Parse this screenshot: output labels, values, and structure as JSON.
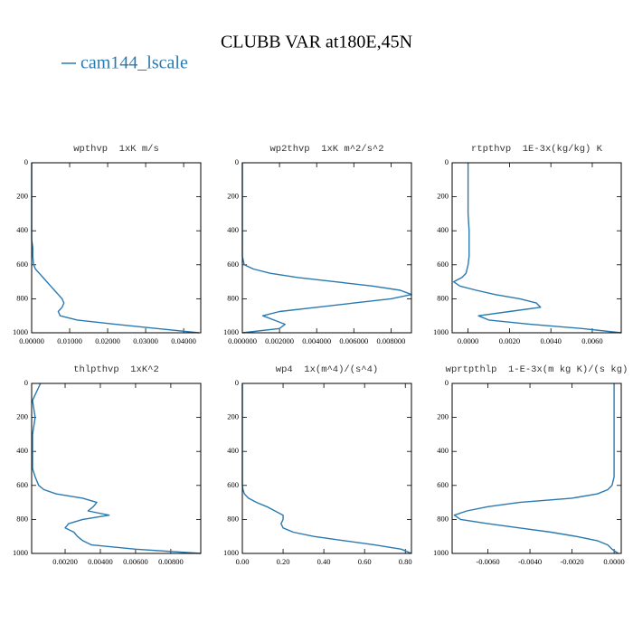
{
  "title": "CLUBB VAR at180E,45N",
  "chart_data": [
    {
      "type": "line",
      "title": "wpthvp  1xK m/s",
      "y_inverted": true,
      "y": [
        0,
        100,
        200,
        300,
        400,
        450,
        500,
        550,
        600,
        625,
        650,
        675,
        700,
        725,
        750,
        775,
        800,
        825,
        850,
        875,
        900,
        925,
        950,
        975,
        1000
      ],
      "ylim": [
        0,
        1000
      ],
      "yticks": [
        0,
        200,
        400,
        600,
        800,
        1000
      ],
      "xlim": [
        0,
        0.0445
      ],
      "xticks": [
        {
          "value": 0,
          "label": "0.00000"
        },
        {
          "value": 0.01,
          "label": "0.01000"
        },
        {
          "value": 0.02,
          "label": "0.02000"
        },
        {
          "value": 0.03,
          "label": "0.03000"
        },
        {
          "value": 0.04,
          "label": "0.04000"
        }
      ],
      "series": [
        {
          "name": "cam144_lscale",
          "color": "#2a7ab0",
          "values": [
            0,
            0,
            0,
            0,
            0,
            0,
            0.0003,
            0.0003,
            0.0005,
            0.001,
            0.002,
            0.003,
            0.004,
            0.005,
            0.006,
            0.007,
            0.008,
            0.0085,
            0.008,
            0.007,
            0.0075,
            0.012,
            0.022,
            0.033,
            0.044
          ]
        }
      ]
    },
    {
      "type": "line",
      "title": "wp2thvp  1xK m^2/s^2",
      "y_inverted": true,
      "y": [
        0,
        100,
        200,
        300,
        400,
        450,
        500,
        550,
        600,
        625,
        650,
        675,
        700,
        725,
        750,
        775,
        800,
        825,
        850,
        875,
        900,
        925,
        950,
        975,
        1000
      ],
      "ylim": [
        0,
        1000
      ],
      "yticks": [
        0,
        200,
        400,
        600,
        800,
        1000
      ],
      "xlim": [
        0,
        0.0091
      ],
      "xticks": [
        {
          "value": 0,
          "label": "0.000000"
        },
        {
          "value": 0.002,
          "label": "0.002000"
        },
        {
          "value": 0.004,
          "label": "0.004000"
        },
        {
          "value": 0.006,
          "label": "0.006000"
        },
        {
          "value": 0.008,
          "label": "0.008000"
        }
      ],
      "series": [
        {
          "name": "cam144_lscale",
          "color": "#2a7ab0",
          "values": [
            0,
            0,
            0,
            0,
            0,
            0,
            0,
            0,
            0.0001,
            0.0006,
            0.0015,
            0.003,
            0.005,
            0.007,
            0.0085,
            0.0091,
            0.008,
            0.006,
            0.004,
            0.002,
            0.0011,
            0.0017,
            0.0023,
            0.002,
            0
          ]
        }
      ]
    },
    {
      "type": "line",
      "title": "rtpthvp  1E-3x(kg/kg) K",
      "y_inverted": true,
      "y": [
        0,
        100,
        200,
        300,
        400,
        450,
        500,
        550,
        600,
        625,
        650,
        675,
        700,
        725,
        750,
        775,
        800,
        825,
        850,
        875,
        900,
        925,
        950,
        975,
        1000
      ],
      "ylim": [
        0,
        1000
      ],
      "yticks": [
        0,
        200,
        400,
        600,
        800,
        1000
      ],
      "xlim": [
        -0.00077,
        0.0074
      ],
      "xticks": [
        {
          "value": 0,
          "label": "0.0000"
        },
        {
          "value": 0.002,
          "label": "0.0020"
        },
        {
          "value": 0.004,
          "label": "0.0040"
        },
        {
          "value": 0.006,
          "label": "0.0060"
        }
      ],
      "series": [
        {
          "name": "cam144_lscale",
          "color": "#2a7ab0",
          "values": [
            0,
            0,
            0,
            0,
            5e-05,
            5e-05,
            5e-05,
            5e-05,
            0,
            -5e-05,
            -0.0001,
            -0.0003,
            -0.0007,
            -0.0004,
            0.0004,
            0.0013,
            0.0025,
            0.0033,
            0.0035,
            0.002,
            0.0005,
            0.001,
            0.003,
            0.0055,
            0.0074
          ]
        }
      ]
    },
    {
      "type": "line",
      "title": "thlpthvp  1xK^2",
      "y_inverted": true,
      "y": [
        0,
        100,
        200,
        300,
        400,
        450,
        500,
        550,
        600,
        625,
        650,
        675,
        700,
        725,
        750,
        775,
        800,
        825,
        850,
        875,
        900,
        925,
        950,
        975,
        1000
      ],
      "ylim": [
        0,
        1000
      ],
      "yticks": [
        0,
        200,
        400,
        600,
        800,
        1000
      ],
      "xlim": [
        0.0001,
        0.0097
      ],
      "xticks": [
        {
          "value": 0.002,
          "label": "0.00200"
        },
        {
          "value": 0.004,
          "label": "0.00400"
        },
        {
          "value": 0.006,
          "label": "0.00600"
        },
        {
          "value": 0.008,
          "label": "0.00800"
        }
      ],
      "series": [
        {
          "name": "cam144_lscale",
          "color": "#2a7ab0",
          "values": [
            0.0006,
            0.00015,
            0.0003,
            0.00015,
            0.00015,
            0.00015,
            0.00015,
            0.0003,
            0.0005,
            0.0008,
            0.0015,
            0.003,
            0.0038,
            0.0036,
            0.0033,
            0.0045,
            0.003,
            0.0022,
            0.002,
            0.0025,
            0.0027,
            0.003,
            0.0035,
            0.006,
            0.0097
          ]
        }
      ]
    },
    {
      "type": "line",
      "title": "wp4  1x(m^4)/(s^4)",
      "y_inverted": true,
      "y": [
        0,
        100,
        200,
        300,
        400,
        450,
        500,
        550,
        600,
        625,
        650,
        675,
        700,
        725,
        750,
        775,
        800,
        825,
        850,
        875,
        900,
        925,
        950,
        975,
        1000
      ],
      "ylim": [
        0,
        1000
      ],
      "yticks": [
        0,
        200,
        400,
        600,
        800,
        1000
      ],
      "xlim": [
        0,
        0.83
      ],
      "xticks": [
        {
          "value": 0,
          "label": "0.00"
        },
        {
          "value": 0.2,
          "label": "0.20"
        },
        {
          "value": 0.4,
          "label": "0.40"
        },
        {
          "value": 0.6,
          "label": "0.60"
        },
        {
          "value": 0.8,
          "label": "0.80"
        }
      ],
      "series": [
        {
          "name": "cam144_lscale",
          "color": "#2a7ab0",
          "values": [
            0,
            0,
            0,
            0,
            0,
            0,
            0,
            0,
            0,
            0.003,
            0.01,
            0.03,
            0.07,
            0.12,
            0.16,
            0.2,
            0.2,
            0.19,
            0.2,
            0.25,
            0.35,
            0.5,
            0.65,
            0.78,
            0.83
          ]
        }
      ]
    },
    {
      "type": "line",
      "title": "wprtpthlp  1-E-3x(m kg K)/(s kg)",
      "y_inverted": true,
      "y": [
        0,
        100,
        200,
        300,
        400,
        450,
        500,
        550,
        600,
        625,
        650,
        675,
        700,
        725,
        750,
        775,
        800,
        825,
        850,
        875,
        900,
        925,
        950,
        975,
        1000
      ],
      "ylim": [
        0,
        1000
      ],
      "yticks": [
        0,
        200,
        400,
        600,
        800,
        1000
      ],
      "xlim": [
        -0.0077,
        0.00034
      ],
      "xticks": [
        {
          "value": -0.006,
          "label": "-0.0060"
        },
        {
          "value": -0.004,
          "label": "-0.0040"
        },
        {
          "value": -0.002,
          "label": "-0.0020"
        },
        {
          "value": 0,
          "label": "0.0000"
        }
      ],
      "series": [
        {
          "name": "cam144_lscale",
          "color": "#2a7ab0",
          "values": [
            0,
            0,
            0,
            0,
            0,
            0,
            0,
            0,
            -0.0001,
            -0.0003,
            -0.0008,
            -0.002,
            -0.0045,
            -0.006,
            -0.007,
            -0.0076,
            -0.0073,
            -0.006,
            -0.0045,
            -0.003,
            -0.0018,
            -0.0008,
            -0.0003,
            -0.0001,
            0.0002
          ]
        }
      ]
    }
  ]
}
